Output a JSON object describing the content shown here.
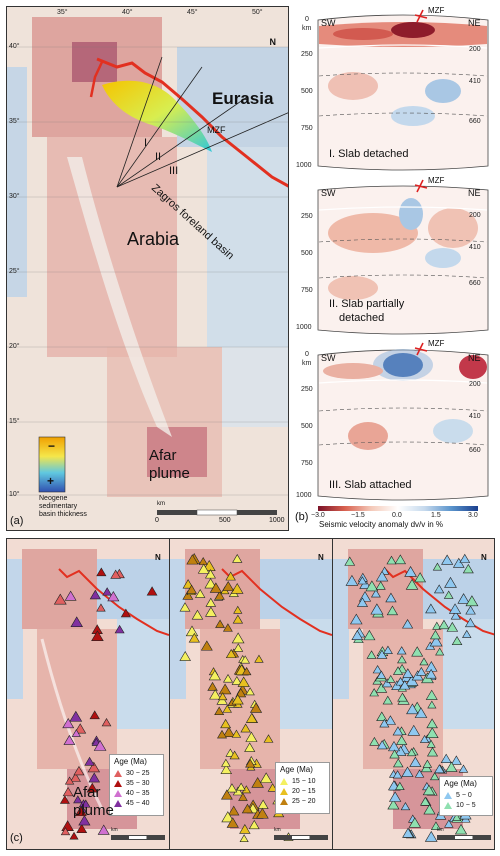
{
  "panel_a": {
    "label": "(a)",
    "lon_ticks": [
      "35°",
      "40°",
      "45°",
      "50°"
    ],
    "lat_ticks": [
      "40°",
      "35°",
      "30°",
      "25°",
      "20°",
      "15°",
      "10°"
    ],
    "region_labels": {
      "eurasia": "Eurasia",
      "arabia": "Arabia",
      "afar": "Afar",
      "plume": "plume",
      "mzf": "MZF",
      "zagros": "Zagros foreland basin"
    },
    "profiles": [
      "I",
      "II",
      "III"
    ],
    "basin_legend": {
      "minus": "−",
      "plus": "+",
      "caption_1": "Neogene",
      "caption_2": "sedimentary",
      "caption_3": "basin thickness"
    },
    "scale": {
      "unit": "km",
      "ticks": [
        "0",
        "500",
        "1000"
      ]
    },
    "north": "N"
  },
  "panel_b": {
    "label": "(b)",
    "sections": [
      {
        "sw": "SW",
        "ne": "NE",
        "mzf": "MZF",
        "depth_unit": "km",
        "depths": [
          "0",
          "250",
          "500",
          "750",
          "1000"
        ],
        "disc": [
          "200",
          "410",
          "660"
        ],
        "caption": "I. Slab detached"
      },
      {
        "sw": "SW",
        "ne": "NE",
        "mzf": "MZF",
        "depth_unit": "",
        "depths": [
          "250",
          "500",
          "750",
          "1000"
        ],
        "disc": [
          "200",
          "410",
          "660"
        ],
        "caption_1": "II. Slab partially",
        "caption_2": "detached"
      },
      {
        "sw": "SW",
        "ne": "NE",
        "mzf": "MZF",
        "depth_unit": "km",
        "depths": [
          "0",
          "250",
          "500",
          "750",
          "1000"
        ],
        "disc": [
          "200",
          "410",
          "660"
        ],
        "caption": "III. Slab attached"
      }
    ],
    "colorbar": {
      "ticks": [
        "−3.0",
        "−1.5",
        "0.0",
        "1.5",
        "3.0"
      ],
      "title": "Seismic velocity anomaly dv/v in %"
    }
  },
  "panel_c": {
    "label": "(c)",
    "afar_1": "Afar",
    "afar_2": "plume",
    "maps": [
      {
        "legend_title": "Age (Ma)",
        "entries": [
          {
            "label": "30 − 25",
            "color": "#e06060"
          },
          {
            "label": "35 − 30",
            "color": "#b01010"
          },
          {
            "label": "40 − 35",
            "color": "#d070d0"
          },
          {
            "label": "45 − 40",
            "color": "#8030a0"
          }
        ]
      },
      {
        "legend_title": "Age (Ma)",
        "entries": [
          {
            "label": "15 − 10",
            "color": "#f4f060"
          },
          {
            "label": "20 − 15",
            "color": "#e8c020"
          },
          {
            "label": "25 − 20",
            "color": "#c08010"
          }
        ]
      },
      {
        "legend_title": "Age (Ma)",
        "entries": [
          {
            "label": "5 − 0",
            "color": "#8fc8f0"
          },
          {
            "label": "10 − 5",
            "color": "#8fe0b0"
          }
        ]
      }
    ],
    "scale": {
      "unit": "km",
      "ticks": [
        "0",
        "500",
        "1000"
      ]
    },
    "north": "N"
  }
}
